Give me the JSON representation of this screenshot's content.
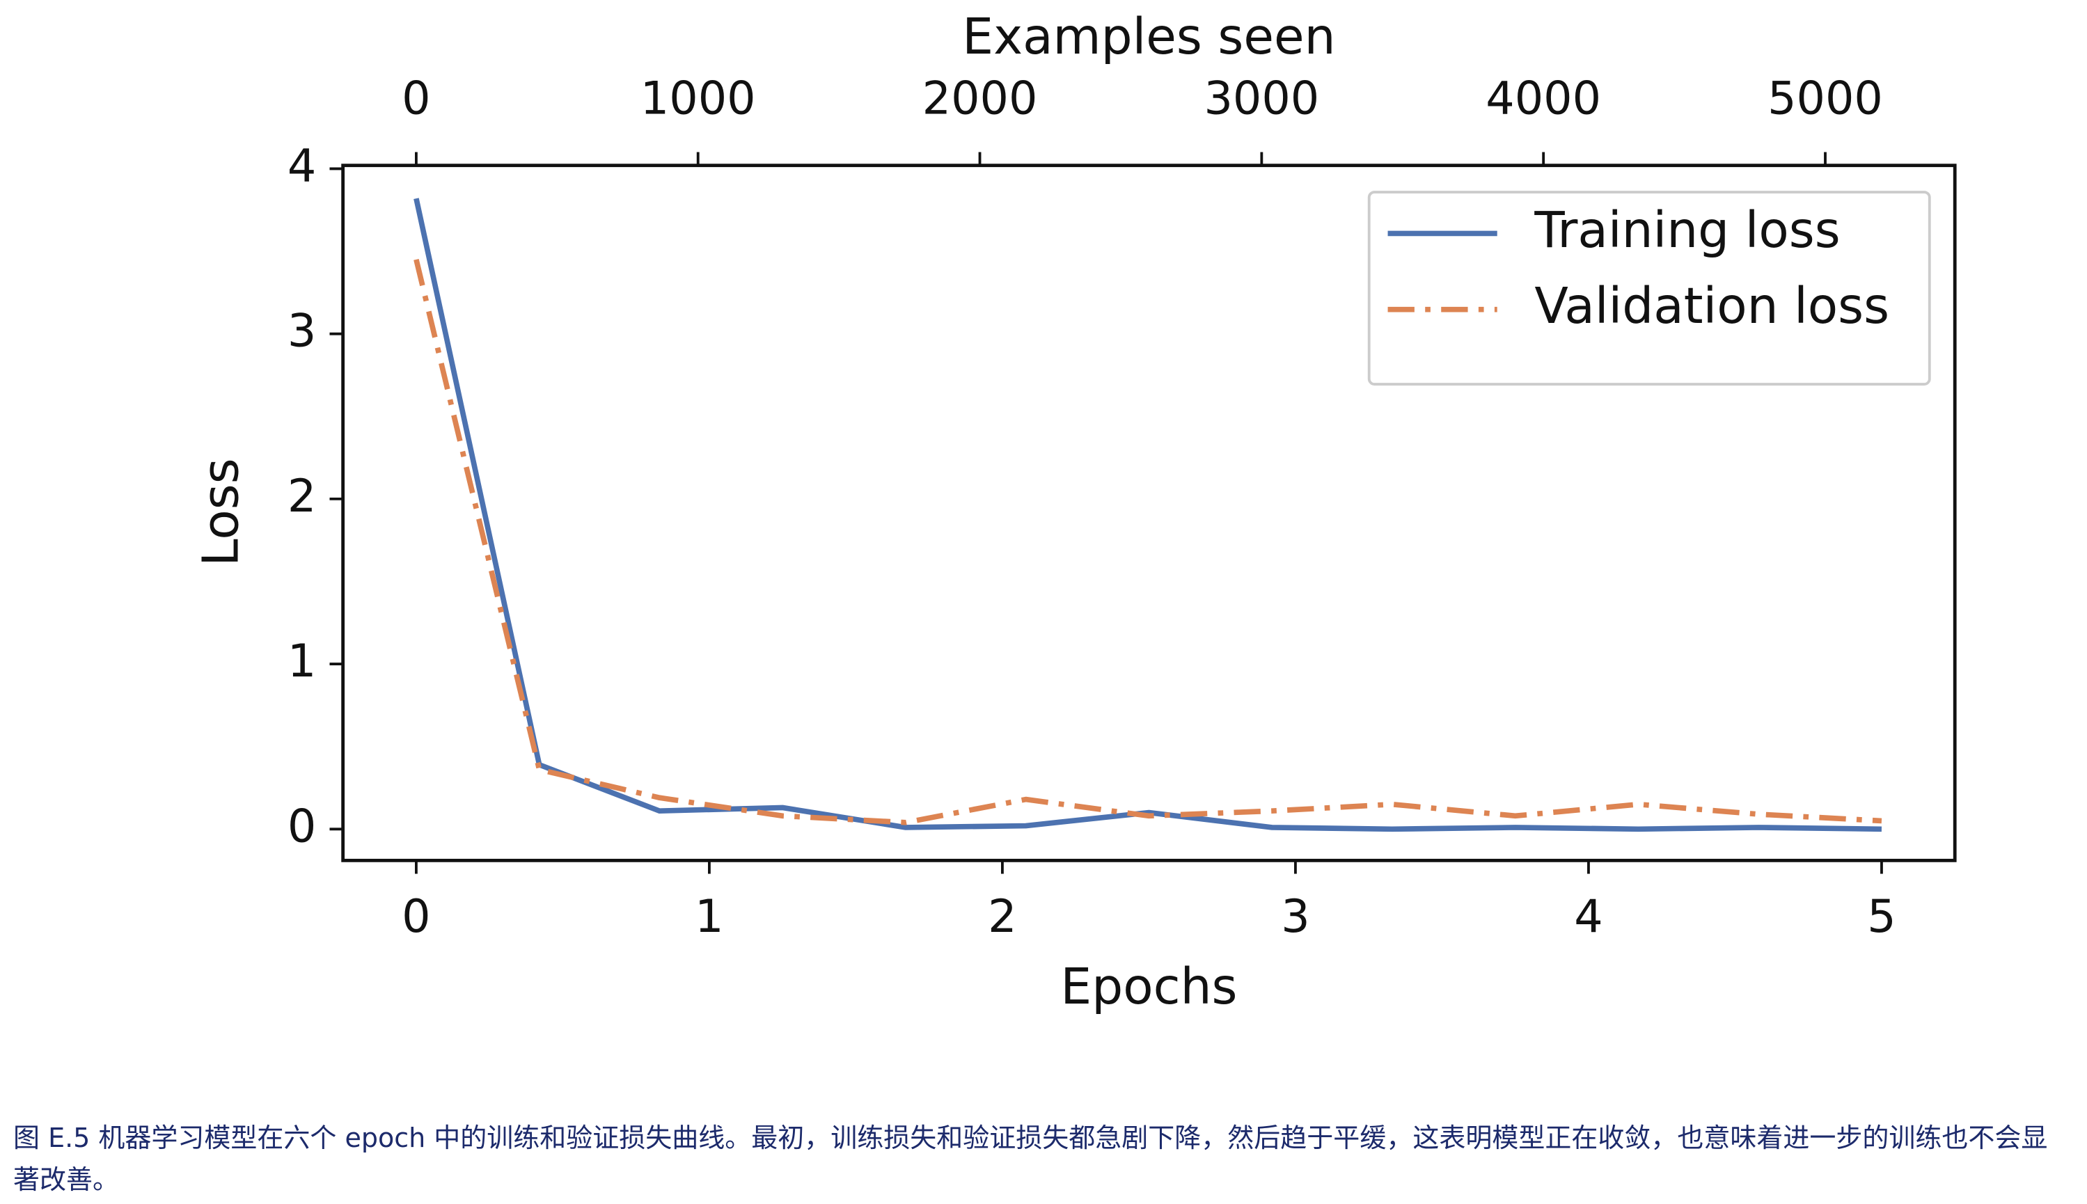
{
  "chart_data": {
    "type": "line",
    "xlabel": "Epochs",
    "ylabel": "Loss",
    "x2label": "Examples seen",
    "x": [
      0,
      0.42,
      0.83,
      1.25,
      1.67,
      2.08,
      2.5,
      2.92,
      3.33,
      3.75,
      4.17,
      4.58,
      5
    ],
    "series": [
      {
        "name": "Training loss",
        "color": "#4c72b0",
        "style": "solid",
        "values": [
          3.82,
          0.39,
          0.11,
          0.13,
          0.01,
          0.02,
          0.1,
          0.01,
          0.0,
          0.01,
          0.0,
          0.01,
          0.0
        ]
      },
      {
        "name": "Validation loss",
        "color": "#dd8452",
        "style": "dashdot",
        "values": [
          3.45,
          0.36,
          0.19,
          0.08,
          0.04,
          0.18,
          0.08,
          0.11,
          0.15,
          0.08,
          0.15,
          0.09,
          0.05
        ]
      }
    ],
    "xlim": [
      -0.25,
      5.25
    ],
    "xticks": [
      0,
      1,
      2,
      3,
      4,
      5
    ],
    "ylim": [
      -0.19,
      4.02
    ],
    "yticks": [
      0,
      1,
      2,
      3,
      4
    ],
    "x2lim": [
      -260,
      5460
    ],
    "x2ticks": [
      0,
      1000,
      2000,
      3000,
      4000,
      5000
    ],
    "legend": "upper right",
    "grid": false
  },
  "caption": "图 E.5 机器学习模型在六个 epoch 中的训练和验证损失曲线。最初，训练损失和验证损失都急剧下降，然后趋于平缓，这表明模型正在收敛，也意味着进一步的训练也不会显著改善。"
}
